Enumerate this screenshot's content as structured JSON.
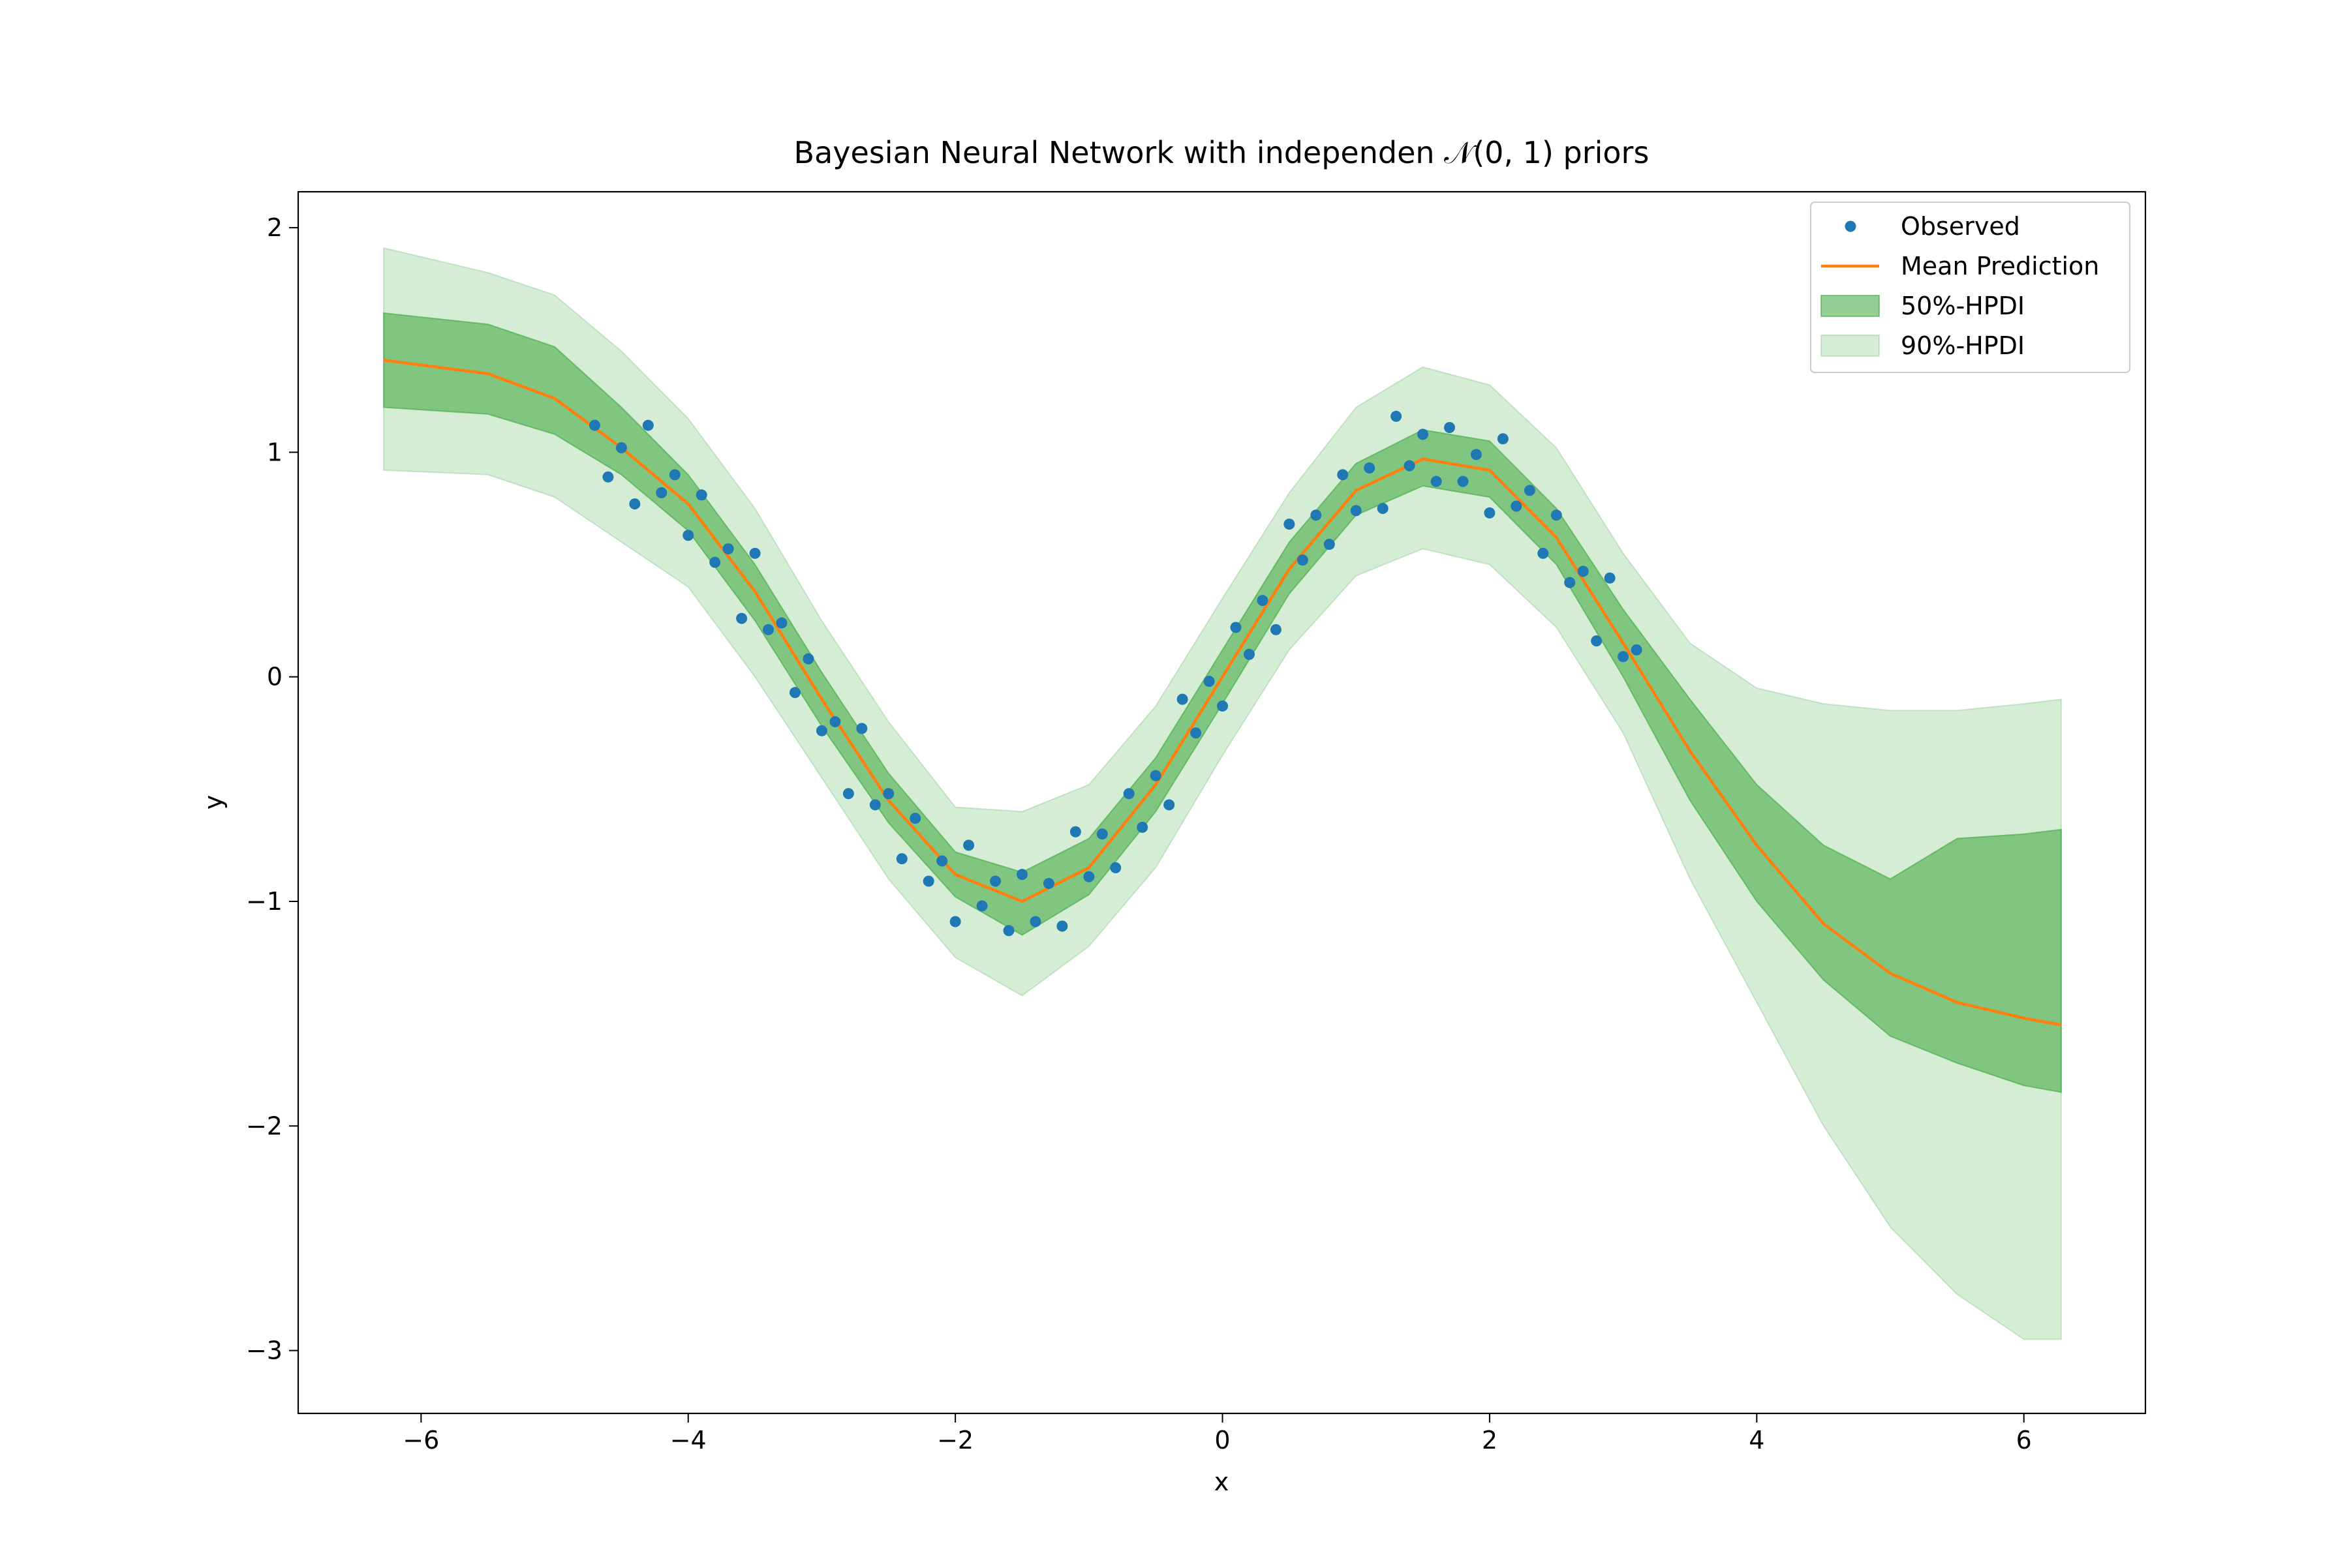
{
  "chart_data": {
    "type": "line",
    "title": "Bayesian Neural Network with independen 𝒩(0, 1) priors",
    "x_label": "x",
    "y_label": "y",
    "xlim": [
      -6.92,
      6.91
    ],
    "ylim": [
      -3.28,
      2.16
    ],
    "xticks": [
      {
        "value": -6,
        "label": "−6"
      },
      {
        "value": -4,
        "label": "−4"
      },
      {
        "value": -2,
        "label": "−2"
      },
      0,
      2,
      4,
      6
    ],
    "yticks": [
      {
        "value": -3,
        "label": "−3"
      },
      {
        "value": -2,
        "label": "−2"
      },
      {
        "value": -1,
        "label": "−1"
      },
      0,
      1,
      2
    ],
    "grid": false,
    "legend": "upper right",
    "series": [
      {
        "name": "Observed",
        "type": "scatter",
        "color": "#1f77b4",
        "x": [
          -4.7,
          -4.6,
          -4.5,
          -4.4,
          -4.3,
          -4.2,
          -4.1,
          -4.0,
          -3.9,
          -3.8,
          -3.7,
          -3.6,
          -3.5,
          -3.4,
          -3.3,
          -3.2,
          -3.1,
          -3.0,
          -2.9,
          -2.8,
          -2.7,
          -2.6,
          -2.5,
          -2.4,
          -2.3,
          -2.2,
          -2.1,
          -2.0,
          -1.9,
          -1.8,
          -1.7,
          -1.6,
          -1.5,
          -1.4,
          -1.3,
          -1.2,
          -1.1,
          -1.0,
          -0.9,
          -0.8,
          -0.7,
          -0.6,
          -0.5,
          -0.4,
          -0.3,
          -0.2,
          -0.1,
          0,
          0.1,
          0.2,
          0.3,
          0.4,
          0.5,
          0.6,
          0.7,
          0.8,
          0.9,
          1.0,
          1.1,
          1.2,
          1.3,
          1.4,
          1.5,
          1.6,
          1.7,
          1.8,
          1.9,
          2.0,
          2.1,
          2.2,
          2.3,
          2.4,
          2.5,
          2.6,
          2.7,
          2.8,
          2.9,
          3.0,
          3.1
        ],
        "values": [
          1.12,
          0.89,
          1.02,
          0.77,
          1.12,
          0.82,
          0.9,
          0.63,
          0.81,
          0.51,
          0.57,
          0.26,
          0.55,
          0.21,
          0.24,
          -0.07,
          0.08,
          -0.24,
          -0.2,
          -0.52,
          -0.23,
          -0.57,
          -0.52,
          -0.81,
          -0.63,
          -0.91,
          -0.82,
          -1.09,
          -0.75,
          -1.02,
          -0.91,
          -1.13,
          -0.88,
          -1.09,
          -0.92,
          -1.11,
          -0.69,
          -0.89,
          -0.7,
          -0.85,
          -0.52,
          -0.67,
          -0.44,
          -0.57,
          -0.1,
          -0.25,
          -0.02,
          -0.13,
          0.22,
          0.1,
          0.34,
          0.21,
          0.68,
          0.52,
          0.72,
          0.59,
          0.9,
          0.74,
          0.93,
          0.75,
          1.16,
          0.94,
          1.08,
          0.87,
          1.11,
          0.87,
          0.99,
          0.73,
          1.06,
          0.76,
          0.83,
          0.55,
          0.72,
          0.42,
          0.47,
          0.16,
          0.44,
          0.09,
          0.12
        ]
      },
      {
        "name": "Mean Prediction",
        "type": "line",
        "color": "#ff7f0e",
        "x": [
          -6.28,
          -5.5,
          -5,
          -4.5,
          -4,
          -3.5,
          -3,
          -2.5,
          -2,
          -1.5,
          -1,
          -0.5,
          0,
          0.5,
          1,
          1.5,
          2,
          2.5,
          3,
          3.5,
          4,
          4.5,
          5,
          5.5,
          6,
          6.28
        ],
        "values": [
          1.41,
          1.35,
          1.24,
          1.02,
          0.77,
          0.38,
          -0.1,
          -0.55,
          -0.88,
          -1.0,
          -0.85,
          -0.48,
          0.0,
          0.48,
          0.83,
          0.97,
          0.92,
          0.62,
          0.15,
          -0.33,
          -0.75,
          -1.1,
          -1.32,
          -1.45,
          -1.52,
          -1.55
        ]
      },
      {
        "name": "50%-HPDI",
        "type": "band",
        "color": "#2ca02c",
        "alpha": 0.5,
        "x": [
          -6.28,
          -5.5,
          -5,
          -4.5,
          -4,
          -3.5,
          -3,
          -2.5,
          -2,
          -1.5,
          -1,
          -0.5,
          0,
          0.5,
          1,
          1.5,
          2,
          2.5,
          3,
          3.5,
          4,
          4.5,
          5,
          5.5,
          6,
          6.28
        ],
        "lower": [
          1.2,
          1.17,
          1.08,
          0.9,
          0.65,
          0.25,
          -0.22,
          -0.65,
          -0.98,
          -1.15,
          -0.97,
          -0.6,
          -0.12,
          0.37,
          0.72,
          0.85,
          0.8,
          0.5,
          0.0,
          -0.55,
          -1.0,
          -1.35,
          -1.6,
          -1.72,
          -1.82,
          -1.85
        ],
        "upper": [
          1.62,
          1.57,
          1.47,
          1.2,
          0.9,
          0.5,
          0.02,
          -0.43,
          -0.78,
          -0.87,
          -0.72,
          -0.36,
          0.12,
          0.6,
          0.95,
          1.1,
          1.05,
          0.75,
          0.3,
          -0.1,
          -0.48,
          -0.75,
          -0.9,
          -0.72,
          -0.7,
          -0.68
        ]
      },
      {
        "name": "90%-HPDI",
        "type": "band",
        "color": "#2ca02c",
        "alpha": 0.2,
        "x": [
          -6.28,
          -5.5,
          -5,
          -4.5,
          -4,
          -3.5,
          -3,
          -2.5,
          -2,
          -1.5,
          -1,
          -0.5,
          0,
          0.5,
          1,
          1.5,
          2,
          2.5,
          3,
          3.5,
          4,
          4.5,
          5,
          5.5,
          6,
          6.28
        ],
        "lower": [
          0.92,
          0.9,
          0.8,
          0.6,
          0.4,
          0.0,
          -0.45,
          -0.9,
          -1.25,
          -1.42,
          -1.2,
          -0.85,
          -0.35,
          0.12,
          0.45,
          0.57,
          0.5,
          0.22,
          -0.25,
          -0.9,
          -1.45,
          -2.0,
          -2.45,
          -2.75,
          -2.95,
          -2.95
        ],
        "upper": [
          1.91,
          1.8,
          1.7,
          1.45,
          1.15,
          0.75,
          0.25,
          -0.2,
          -0.58,
          -0.6,
          -0.48,
          -0.13,
          0.35,
          0.82,
          1.2,
          1.38,
          1.3,
          1.02,
          0.55,
          0.15,
          -0.05,
          -0.12,
          -0.15,
          -0.15,
          -0.12,
          -0.1
        ]
      }
    ]
  }
}
